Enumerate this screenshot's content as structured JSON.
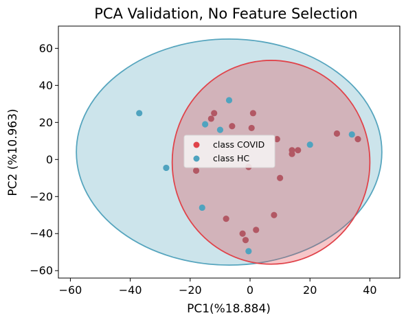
{
  "chart_data": {
    "type": "scatter",
    "title": "PCA Validation, No Feature Selection",
    "xlabel": "PC1(%18.884)",
    "ylabel": "PC2 (%10.963)",
    "xlim": [
      -64,
      50
    ],
    "ylim": [
      -64,
      72
    ],
    "xticks": [
      -60,
      -40,
      -20,
      0,
      20,
      40
    ],
    "yticks": [
      -60,
      -40,
      -20,
      0,
      20,
      40,
      60
    ],
    "xtick_labels": [
      "−60",
      "−40",
      "−20",
      "0",
      "20",
      "40"
    ],
    "ytick_labels": [
      "−60",
      "−40",
      "−20",
      "0",
      "20",
      "40",
      "60"
    ],
    "grid": false,
    "legend_position": "center",
    "series": [
      {
        "name": "class COVID",
        "color": "#e0434a",
        "marker_color": "#b25864",
        "ellipse": {
          "center": [
            7,
            -1.5
          ],
          "radius": [
            33,
            55
          ]
        },
        "points": [
          [
            -12,
            25
          ],
          [
            -13,
            22
          ],
          [
            -6,
            18
          ],
          [
            1,
            25
          ],
          [
            0.5,
            17
          ],
          [
            9,
            11
          ],
          [
            -18,
            -6
          ],
          [
            -0.5,
            -4
          ],
          [
            10,
            -10
          ],
          [
            14,
            5
          ],
          [
            16,
            5
          ],
          [
            14,
            3
          ],
          [
            29,
            14
          ],
          [
            36,
            11
          ],
          [
            -8,
            -32
          ],
          [
            8,
            -30
          ],
          [
            2,
            -38
          ],
          [
            -2.5,
            -40
          ],
          [
            -1.5,
            -43.5
          ]
        ]
      },
      {
        "name": "class HC",
        "color": "#56a5be",
        "marker_color": "#4fa3bf",
        "ellipse": {
          "center": [
            -7,
            4
          ],
          "radius": [
            51,
            61
          ]
        },
        "points": [
          [
            -37,
            25
          ],
          [
            -7,
            32
          ],
          [
            -15,
            19
          ],
          [
            -10,
            16
          ],
          [
            -28,
            -4.5
          ],
          [
            -16,
            -26
          ],
          [
            20,
            8
          ],
          [
            34,
            13.5
          ],
          [
            -0.5,
            -49.5
          ]
        ]
      }
    ]
  }
}
